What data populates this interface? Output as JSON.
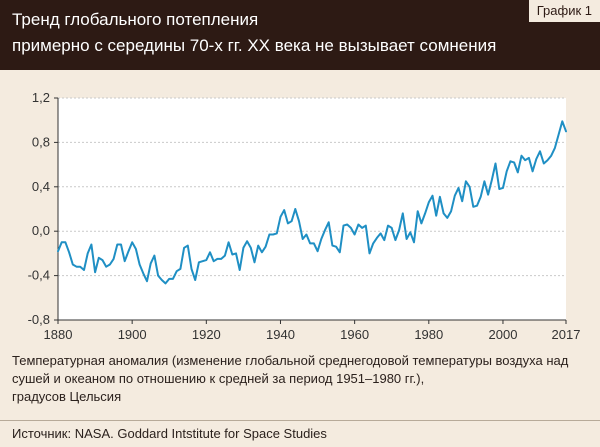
{
  "header": {
    "title_line1": "Тренд глобального потепления",
    "title_line2": "примерно с середины 70-х гг. XX века не вызывает сомнения",
    "badge": "График 1"
  },
  "caption": {
    "line1": "Температурная аномалия (изменение глобальной среднегодовой температуры воздуха над",
    "line2": "сушей и океаном по отношению к средней за период 1951–1980 гг.),",
    "line3": "градусов Цельсия"
  },
  "source": "Источник: NASA. Goddard Intstitute for Space Studies",
  "colors": {
    "header_bg": "#2d1a14",
    "page_bg": "#f4ebdf",
    "plot_bg": "#ffffff",
    "line": "#1f8fc4",
    "grid": "#c9c9c9",
    "axis": "#333333"
  },
  "chart_data": {
    "type": "line",
    "title": "",
    "xlabel": "",
    "ylabel": "",
    "xlim": [
      1880,
      2017
    ],
    "ylim": [
      -0.8,
      1.2
    ],
    "grid": true,
    "x_ticks": [
      1880,
      1900,
      1920,
      1940,
      1960,
      1980,
      2000,
      2017
    ],
    "x_tick_labels": [
      "1880",
      "1900",
      "1920",
      "1940",
      "1960",
      "1980",
      "2000",
      "2017"
    ],
    "y_ticks": [
      -0.8,
      -0.4,
      0.0,
      0.4,
      0.8,
      1.2
    ],
    "y_tick_labels": [
      "-0,8",
      "-0,4",
      "0,0",
      "0,4",
      "0,8",
      "1,2"
    ],
    "x": [
      1880,
      1881,
      1882,
      1883,
      1884,
      1885,
      1886,
      1887,
      1888,
      1889,
      1890,
      1891,
      1892,
      1893,
      1894,
      1895,
      1896,
      1897,
      1898,
      1899,
      1900,
      1901,
      1902,
      1903,
      1904,
      1905,
      1906,
      1907,
      1908,
      1909,
      1910,
      1911,
      1912,
      1913,
      1914,
      1915,
      1916,
      1917,
      1918,
      1919,
      1920,
      1921,
      1922,
      1923,
      1924,
      1925,
      1926,
      1927,
      1928,
      1929,
      1930,
      1931,
      1932,
      1933,
      1934,
      1935,
      1936,
      1937,
      1938,
      1939,
      1940,
      1941,
      1942,
      1943,
      1944,
      1945,
      1946,
      1947,
      1948,
      1949,
      1950,
      1951,
      1952,
      1953,
      1954,
      1955,
      1956,
      1957,
      1958,
      1959,
      1960,
      1961,
      1962,
      1963,
      1964,
      1965,
      1966,
      1967,
      1968,
      1969,
      1970,
      1971,
      1972,
      1973,
      1974,
      1975,
      1976,
      1977,
      1978,
      1979,
      1980,
      1981,
      1982,
      1983,
      1984,
      1985,
      1986,
      1987,
      1988,
      1989,
      1990,
      1991,
      1992,
      1993,
      1994,
      1995,
      1996,
      1997,
      1998,
      1999,
      2000,
      2001,
      2002,
      2003,
      2004,
      2005,
      2006,
      2007,
      2008,
      2009,
      2010,
      2011,
      2012,
      2013,
      2014,
      2015,
      2016,
      2017
    ],
    "series": [
      {
        "values": [
          -0.18,
          -0.1,
          -0.1,
          -0.19,
          -0.3,
          -0.32,
          -0.32,
          -0.35,
          -0.2,
          -0.12,
          -0.37,
          -0.24,
          -0.26,
          -0.32,
          -0.3,
          -0.25,
          -0.12,
          -0.12,
          -0.27,
          -0.18,
          -0.1,
          -0.16,
          -0.3,
          -0.38,
          -0.45,
          -0.29,
          -0.22,
          -0.4,
          -0.44,
          -0.47,
          -0.43,
          -0.43,
          -0.36,
          -0.34,
          -0.15,
          -0.13,
          -0.34,
          -0.44,
          -0.28,
          -0.27,
          -0.26,
          -0.19,
          -0.27,
          -0.25,
          -0.25,
          -0.22,
          -0.1,
          -0.21,
          -0.2,
          -0.35,
          -0.15,
          -0.09,
          -0.15,
          -0.28,
          -0.13,
          -0.19,
          -0.14,
          -0.03,
          -0.03,
          -0.02,
          0.13,
          0.19,
          0.07,
          0.09,
          0.2,
          0.09,
          -0.07,
          -0.03,
          -0.11,
          -0.11,
          -0.18,
          -0.07,
          0.01,
          0.08,
          -0.13,
          -0.14,
          -0.19,
          0.05,
          0.06,
          0.03,
          -0.03,
          0.06,
          0.03,
          0.05,
          -0.2,
          -0.11,
          -0.06,
          -0.02,
          -0.08,
          0.05,
          0.03,
          -0.08,
          0.01,
          0.16,
          -0.07,
          -0.01,
          -0.1,
          0.18,
          0.07,
          0.16,
          0.26,
          0.32,
          0.14,
          0.31,
          0.16,
          0.12,
          0.18,
          0.32,
          0.39,
          0.27,
          0.45,
          0.4,
          0.22,
          0.23,
          0.31,
          0.45,
          0.33,
          0.46,
          0.61,
          0.38,
          0.39,
          0.54,
          0.63,
          0.62,
          0.53,
          0.68,
          0.64,
          0.66,
          0.54,
          0.65,
          0.72,
          0.61,
          0.64,
          0.68,
          0.75,
          0.87,
          0.99,
          0.9
        ]
      }
    ]
  }
}
